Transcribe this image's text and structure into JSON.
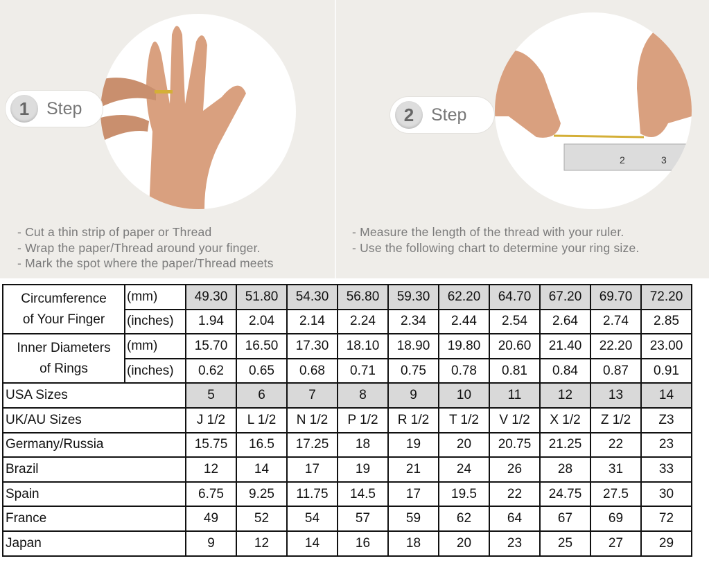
{
  "steps": [
    {
      "number": "1",
      "label": "Step",
      "bullets": [
        "- Cut a thin strip of paper or Thread",
        "- Wrap the paper/Thread around your finger.",
        "- Mark the spot where the paper/Thread meets"
      ]
    },
    {
      "number": "2",
      "label": "Step",
      "bullets": [
        "- Measure the length of the thread with your ruler.",
        "- Use the following chart to determine your ring size."
      ]
    }
  ],
  "table": {
    "circumference": {
      "label_line1": "Circumference",
      "label_line2": "of Your Finger",
      "mm_unit": "(mm)",
      "mm": [
        "49.30",
        "51.80",
        "54.30",
        "56.80",
        "59.30",
        "62.20",
        "64.70",
        "67.20",
        "69.70",
        "72.20"
      ],
      "in_unit": "(inches)",
      "in": [
        "1.94",
        "2.04",
        "2.14",
        "2.24",
        "2.34",
        "2.44",
        "2.54",
        "2.64",
        "2.74",
        "2.85"
      ]
    },
    "diameter": {
      "label_line1": "Inner Diameters",
      "label_line2": "of Rings",
      "mm_unit": "(mm)",
      "mm": [
        "15.70",
        "16.50",
        "17.30",
        "18.10",
        "18.90",
        "19.80",
        "20.60",
        "21.40",
        "22.20",
        "23.00"
      ],
      "in_unit": "(inches)",
      "in": [
        "0.62",
        "0.65",
        "0.68",
        "0.71",
        "0.75",
        "0.78",
        "0.81",
        "0.84",
        "0.87",
        "0.91"
      ]
    },
    "rows": [
      {
        "label": "USA Sizes",
        "shaded": true,
        "values": [
          "5",
          "6",
          "7",
          "8",
          "9",
          "10",
          "11",
          "12",
          "13",
          "14"
        ]
      },
      {
        "label": "UK/AU Sizes",
        "values": [
          "J 1/2",
          "L 1/2",
          "N 1/2",
          "P 1/2",
          "R 1/2",
          "T 1/2",
          "V 1/2",
          "X 1/2",
          "Z 1/2",
          "Z3"
        ]
      },
      {
        "label": "Germany/Russia",
        "values": [
          "15.75",
          "16.5",
          "17.25",
          "18",
          "19",
          "20",
          "20.75",
          "21.25",
          "22",
          "23"
        ]
      },
      {
        "label": "Brazil",
        "values": [
          "12",
          "14",
          "17",
          "19",
          "21",
          "24",
          "26",
          "28",
          "31",
          "33"
        ]
      },
      {
        "label": "Spain",
        "values": [
          "6.75",
          "9.25",
          "11.75",
          "14.5",
          "17",
          "19.5",
          "22",
          "24.75",
          "27.5",
          "30"
        ]
      },
      {
        "label": "France",
        "values": [
          "49",
          "52",
          "54",
          "57",
          "59",
          "62",
          "64",
          "67",
          "69",
          "72"
        ]
      },
      {
        "label": "Japan",
        "values": [
          "9",
          "12",
          "14",
          "16",
          "18",
          "20",
          "23",
          "25",
          "27",
          "29"
        ]
      }
    ]
  },
  "colors": {
    "background": "#efede9",
    "shaded_cell": "#d9d9d9",
    "text_gray": "#7a7a7a",
    "skin": "#d9a07f"
  }
}
